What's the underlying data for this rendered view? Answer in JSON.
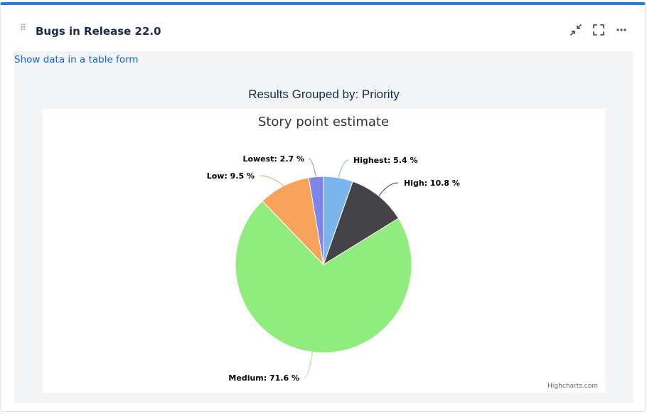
{
  "gadget": {
    "title": "Bugs in Release 22.0",
    "table_link": "Show data in a table form",
    "group_title": "Results Grouped by: Priority",
    "credits": "Highcharts.com"
  },
  "colors": {
    "accent": "#1d7afc",
    "link": "#0c66e4"
  },
  "chart_data": {
    "type": "pie",
    "title": "Story point estimate",
    "slices": [
      {
        "name": "Highest",
        "label": "Highest: 5.4 %",
        "value": 5.4,
        "color": "#7cb5ec"
      },
      {
        "name": "High",
        "label": "High: 10.8 %",
        "value": 10.8,
        "color": "#434348"
      },
      {
        "name": "Medium",
        "label": "Medium: 71.6 %",
        "value": 71.6,
        "color": "#90ed7d"
      },
      {
        "name": "Low",
        "label": "Low: 9.5 %",
        "value": 9.5,
        "color": "#f7a35c"
      },
      {
        "name": "Lowest",
        "label": "Lowest: 2.7 %",
        "value": 2.7,
        "color": "#8085e9"
      }
    ]
  }
}
